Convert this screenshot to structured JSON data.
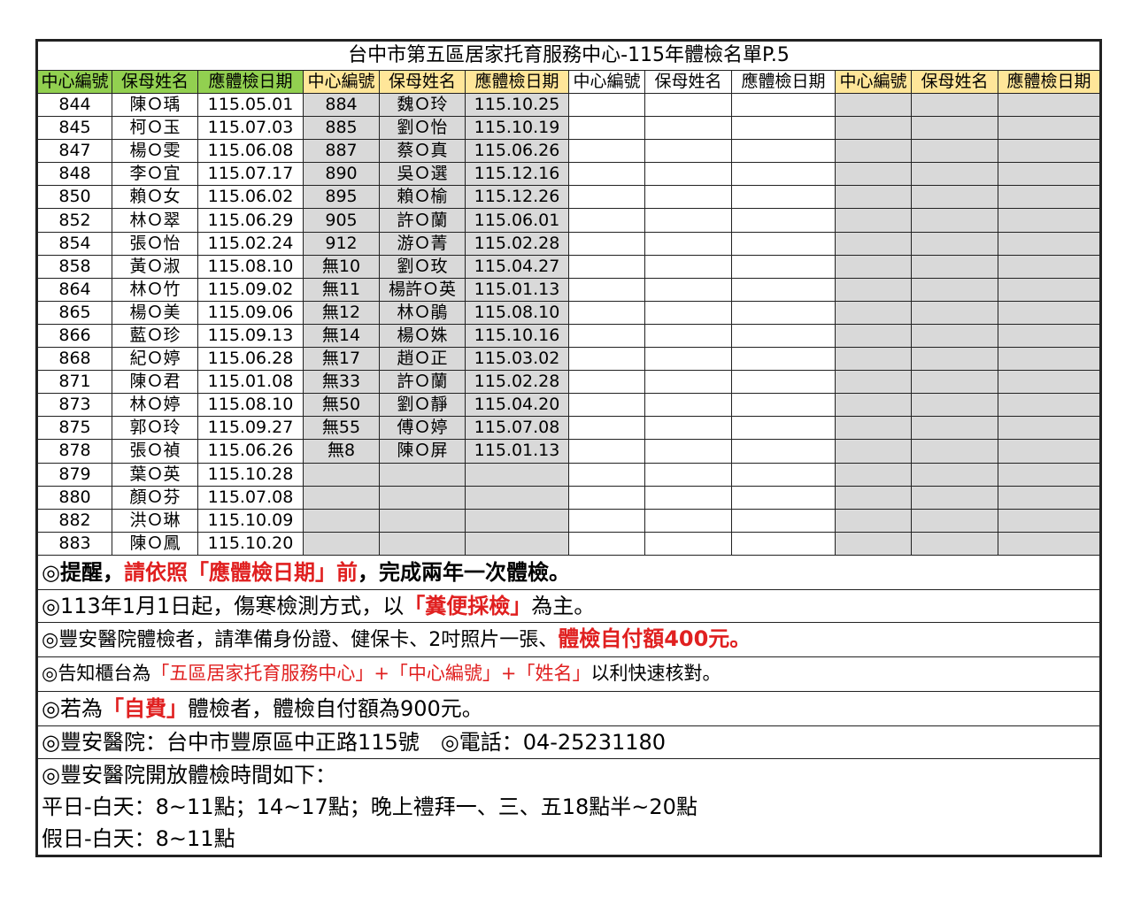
{
  "title": "台中市第五區居家托育服務中心-115年體檢名單P.5",
  "headers": [
    "中心編號",
    "保母姓名",
    "應體檢日期"
  ],
  "groups": [
    {
      "header_color": "#92d050",
      "fill": "#ffffff",
      "rows": [
        [
          "844",
          "陳Ｏ瑀",
          "115.05.01"
        ],
        [
          "845",
          "柯Ｏ玉",
          "115.07.03"
        ],
        [
          "847",
          "楊Ｏ雯",
          "115.06.08"
        ],
        [
          "848",
          "李Ｏ宜",
          "115.07.17"
        ],
        [
          "850",
          "賴Ｏ女",
          "115.06.02"
        ],
        [
          "852",
          "林Ｏ翠",
          "115.06.29"
        ],
        [
          "854",
          "張Ｏ怡",
          "115.02.24"
        ],
        [
          "858",
          "黃Ｏ淑",
          "115.08.10"
        ],
        [
          "864",
          "林Ｏ竹",
          "115.09.02"
        ],
        [
          "865",
          "楊Ｏ美",
          "115.09.06"
        ],
        [
          "866",
          "藍Ｏ珍",
          "115.09.13"
        ],
        [
          "868",
          "紀Ｏ婷",
          "115.06.28"
        ],
        [
          "871",
          "陳Ｏ君",
          "115.01.08"
        ],
        [
          "873",
          "林Ｏ婷",
          "115.08.10"
        ],
        [
          "875",
          "郭Ｏ玲",
          "115.09.27"
        ],
        [
          "878",
          "張Ｏ禎",
          "115.06.26"
        ],
        [
          "879",
          "葉Ｏ英",
          "115.10.28"
        ],
        [
          "880",
          "顏Ｏ芬",
          "115.07.08"
        ],
        [
          "882",
          "洪Ｏ琳",
          "115.10.09"
        ],
        [
          "883",
          "陳Ｏ鳳",
          "115.10.20"
        ]
      ]
    },
    {
      "header_color": "#ffe699",
      "fill": "#d9d9d9",
      "rows": [
        [
          "884",
          "魏Ｏ玲",
          "115.10.25"
        ],
        [
          "885",
          "劉Ｏ怡",
          "115.10.19"
        ],
        [
          "887",
          "蔡Ｏ真",
          "115.06.26"
        ],
        [
          "890",
          "吳Ｏ選",
          "115.12.16"
        ],
        [
          "895",
          "賴Ｏ榆",
          "115.12.26"
        ],
        [
          "905",
          "許Ｏ蘭",
          "115.06.01"
        ],
        [
          "912",
          "游Ｏ菁",
          "115.02.28"
        ],
        [
          "無10",
          "劉Ｏ玫",
          "115.04.27"
        ],
        [
          "無11",
          "楊許Ｏ英",
          "115.01.13"
        ],
        [
          "無12",
          "林Ｏ鵑",
          "115.08.10"
        ],
        [
          "無14",
          "楊Ｏ姝",
          "115.10.16"
        ],
        [
          "無17",
          "趙Ｏ正",
          "115.03.02"
        ],
        [
          "無33",
          "許Ｏ蘭",
          "115.02.28"
        ],
        [
          "無50",
          "劉Ｏ靜",
          "115.04.20"
        ],
        [
          "無55",
          "傅Ｏ婷",
          "115.07.08"
        ],
        [
          "無8",
          "陳Ｏ屏",
          "115.01.13"
        ]
      ]
    },
    {
      "header_color": "#ffffff",
      "fill": "#ffffff",
      "rows": []
    },
    {
      "header_color": "#ffe699",
      "fill": "#d9d9d9",
      "rows": []
    }
  ],
  "notes": [
    [
      "◎提醒，",
      "請依照「應體檢日期」前",
      "，完成兩年一次體檢。"
    ],
    [
      "◎113年1月1日起，傷寒檢測方式，以",
      "「糞便採檢」",
      "為主。"
    ],
    [
      "◎豐安醫院體檢者，請準備身份證、健保卡、2吋照片一張、",
      "體檢自付額400元。"
    ],
    [
      "◎告知櫃台為",
      "「五區居家托育服務中心」+「中心編號」+「姓名」",
      "以利快速核對。"
    ],
    [
      "◎若為",
      "「自費」",
      "體檢者，體檢自付額為900元。"
    ],
    [
      "◎豐安醫院：台中市豐原區中正路115號　◎電話：04-25231180"
    ],
    [
      "◎豐安醫院開放體檢時間如下：",
      "平日-白天：8~11點；14~17點；晚上禮拜一、三、五18點半~20點",
      "假日-白天：8~11點"
    ]
  ]
}
